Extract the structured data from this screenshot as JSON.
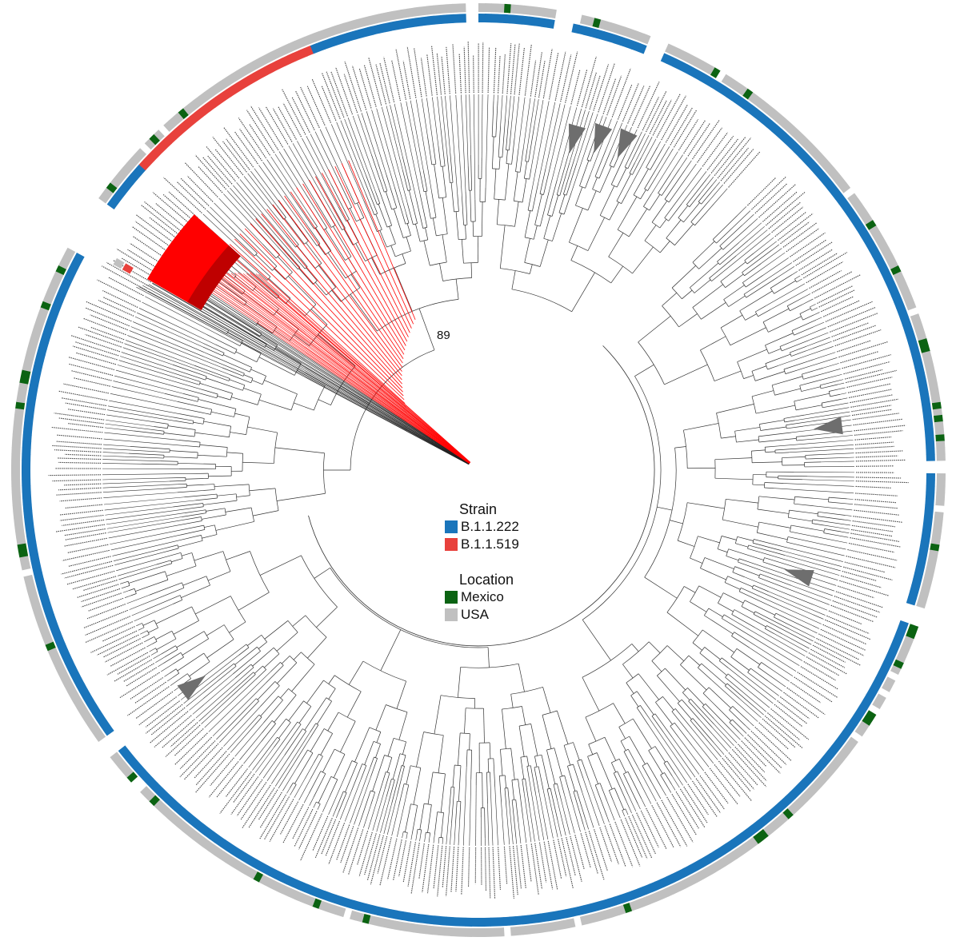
{
  "legend": {
    "strain": {
      "title": "Strain",
      "items": [
        {
          "label": "B.1.1.222",
          "color": "#1a75bb"
        },
        {
          "label": "B.1.1.519",
          "color": "#e8413c"
        }
      ]
    },
    "location": {
      "title": "Location",
      "items": [
        {
          "label": "Mexico",
          "color": "#0b6312"
        },
        {
          "label": "USA",
          "color": "#c0c0c0"
        }
      ]
    }
  },
  "node_support_label": "89",
  "colors": {
    "branch": "#333333",
    "b11519_clade": "#ff0000",
    "collapsed_clade": "#6e6e6e",
    "tip_label": "#444444"
  }
}
